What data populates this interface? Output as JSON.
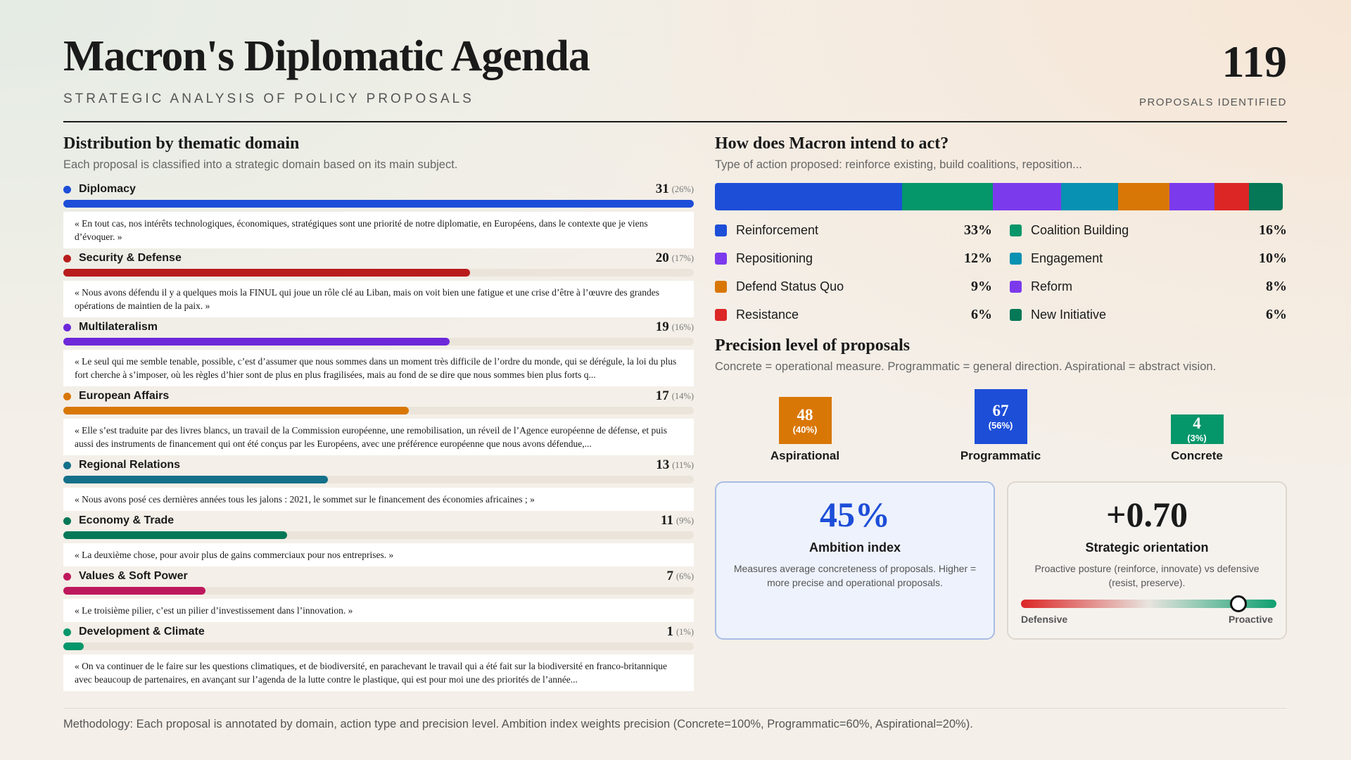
{
  "header": {
    "title": "Macron's Diplomatic Agenda",
    "subtitle": "STRATEGIC ANALYSIS OF POLICY PROPOSALS",
    "total": 119,
    "total_label": "PROPOSALS IDENTIFIED"
  },
  "chart_data": [
    {
      "type": "hbar",
      "title": "Distribution by thematic domain",
      "subtitle": "Each proposal is classified into a strategic domain based on its main subject.",
      "categories": [
        "Diplomacy",
        "Security & Defense",
        "Multilateralism",
        "European Affairs",
        "Regional Relations",
        "Economy & Trade",
        "Values & Soft Power",
        "Development & Climate"
      ],
      "values": [
        31,
        20,
        19,
        17,
        13,
        11,
        7,
        1
      ],
      "shares": [
        26,
        17,
        16,
        14,
        11,
        9,
        6,
        1
      ],
      "share_labels": [
        "(26%)",
        "(17%)",
        "(16%)",
        "(14%)",
        "(11%)",
        "(9%)",
        "(6%)",
        "(1%)"
      ],
      "colors": [
        "#1d4ed8",
        "#b91c1c",
        "#6d28d9",
        "#d97706",
        "#15708a",
        "#047857",
        "#be185d",
        "#059669"
      ],
      "xlim": [
        0,
        31
      ],
      "quotes": [
        "« En tout cas, nos intérêts technologiques, économiques, stratégiques sont une priorité de notre diplomatie, en Européens, dans le contexte que je viens d’évoquer. »",
        "« Nous avons défendu il y a quelques mois la FINUL qui joue un rôle clé au Liban, mais on voit bien une fatigue et une crise d’être à l’œuvre des grandes opérations de maintien de la paix. »",
        "« Le seul qui me semble tenable, possible, c’est d’assumer que nous sommes dans un moment très difficile de l’ordre du monde, qui se dérégule, la loi du plus fort cherche à s’imposer, où les règles d’hier sont de plus en plus fragilisées, mais au fond de se dire que nous sommes bien plus forts q...",
        "« Elle s’est traduite par des livres blancs, un travail de la Commission européenne, une remobilisation, un réveil de l’Agence européenne de défense, et puis aussi des instruments de financement qui ont été conçus par les Européens, avec une préférence européenne que nous avons défendue,...",
        "« Nous avons posé ces dernières années tous les jalons : 2021, le sommet sur le financement des économies africaines ; »",
        "« La deuxième chose, pour avoir plus de gains commerciaux pour nos entreprises. »",
        "« Le troisième pilier, c’est un pilier d’investissement dans l’innovation. »",
        "« On va continuer de le faire sur les questions climatiques, et de biodiversité, en parachevant le travail qui a été fait sur la biodiversité en franco-britannique avec beaucoup de partenaires, en avançant sur l’agenda de la lutte contre le plastique, qui est pour moi une des priorités de l’année..."
      ]
    },
    {
      "type": "stacked_bar",
      "title": "How does Macron intend to act?",
      "subtitle": "Type of action proposed: reinforce existing, build coalitions, reposition...",
      "xlim": [
        0,
        100
      ],
      "series": [
        {
          "name": "Reinforcement",
          "color": "#1d4ed8",
          "values": [
            33
          ],
          "value_labels": [
            "33%"
          ]
        },
        {
          "name": "Coalition Building",
          "color": "#059669",
          "values": [
            16
          ],
          "value_labels": [
            "16%"
          ]
        },
        {
          "name": "Repositioning",
          "color": "#7c3aed",
          "values": [
            12
          ],
          "value_labels": [
            "12%"
          ]
        },
        {
          "name": "Engagement",
          "color": "#0891b2",
          "values": [
            10
          ],
          "value_labels": [
            "10%"
          ]
        },
        {
          "name": "Defend Status Quo",
          "color": "#d97706",
          "values": [
            9
          ],
          "value_labels": [
            "9%"
          ]
        },
        {
          "name": "Reform",
          "color": "#7c3aed",
          "values": [
            8
          ],
          "value_labels": [
            "8%"
          ]
        },
        {
          "name": "Resistance",
          "color": "#dc2626",
          "values": [
            6
          ],
          "value_labels": [
            "6%"
          ]
        },
        {
          "name": "New Initiative",
          "color": "#047857",
          "values": [
            6
          ],
          "value_labels": [
            "6%"
          ]
        }
      ]
    },
    {
      "type": "column",
      "title": "Precision level of proposals",
      "subtitle": "Concrete = operational measure. Programmatic = general direction. Aspirational = abstract vision.",
      "categories": [
        "Aspirational",
        "Programmatic",
        "Concrete"
      ],
      "values": [
        48,
        67,
        4
      ],
      "shares": [
        40,
        56,
        3
      ],
      "share_labels": [
        "(40%)",
        "(56%)",
        "(3%)"
      ],
      "colors": [
        "#d97706",
        "#1d4ed8",
        "#059669"
      ]
    }
  ],
  "kpis": [
    {
      "value": 45,
      "label": "45%",
      "title": "Ambition index",
      "description": "Measures average concreteness of proposals. Higher = more precise and operational proposals."
    },
    {
      "value": 0.7,
      "label": "+0.70",
      "title": "Strategic orientation",
      "description": "Proactive posture (reinforce, innovate) vs defensive (resist, preserve).",
      "xlim": [
        -1,
        1
      ],
      "min_label": "Defensive",
      "max_label": "Proactive"
    }
  ],
  "footer": "Methodology: Each proposal is annotated by domain, action type and precision level. Ambition index weights precision (Concrete=100%, Programmatic=60%, Aspirational=20%)."
}
